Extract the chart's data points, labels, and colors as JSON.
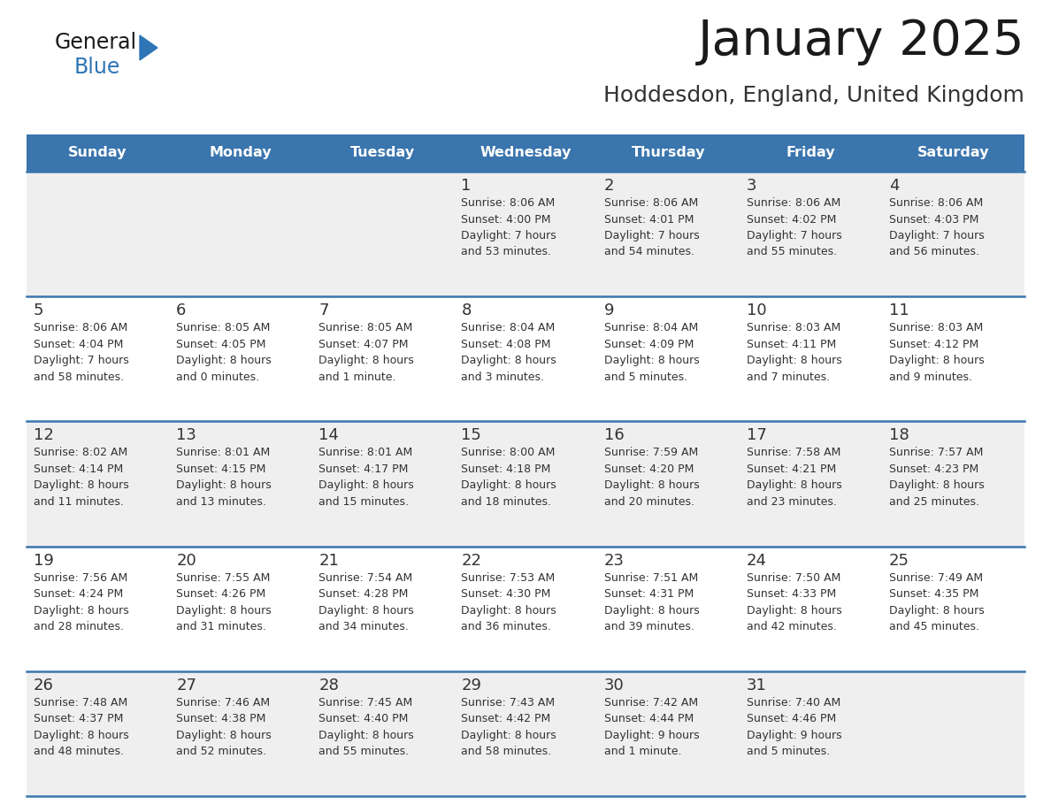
{
  "title": "January 2025",
  "subtitle": "Hoddesdon, England, United Kingdom",
  "days_of_week": [
    "Sunday",
    "Monday",
    "Tuesday",
    "Wednesday",
    "Thursday",
    "Friday",
    "Saturday"
  ],
  "header_bg": "#3a75ad",
  "header_text": "#ffffff",
  "row_bg_odd": "#efefef",
  "row_bg_even": "#ffffff",
  "separator_color": "#3a75ad",
  "day_number_color": "#333333",
  "cell_text_color": "#333333",
  "title_color": "#1a1a1a",
  "subtitle_color": "#333333",
  "general_color": "#1a1a1a",
  "blue_color": "#2e75b6",
  "logo_triangle_color": "#2e75b6",
  "calendar_data": [
    {
      "day": 1,
      "col": 3,
      "row": 0,
      "sunrise": "8:06 AM",
      "sunset": "4:00 PM",
      "daylight": "7 hours and 53 minutes."
    },
    {
      "day": 2,
      "col": 4,
      "row": 0,
      "sunrise": "8:06 AM",
      "sunset": "4:01 PM",
      "daylight": "7 hours and 54 minutes."
    },
    {
      "day": 3,
      "col": 5,
      "row": 0,
      "sunrise": "8:06 AM",
      "sunset": "4:02 PM",
      "daylight": "7 hours and 55 minutes."
    },
    {
      "day": 4,
      "col": 6,
      "row": 0,
      "sunrise": "8:06 AM",
      "sunset": "4:03 PM",
      "daylight": "7 hours and 56 minutes."
    },
    {
      "day": 5,
      "col": 0,
      "row": 1,
      "sunrise": "8:06 AM",
      "sunset": "4:04 PM",
      "daylight": "7 hours and 58 minutes."
    },
    {
      "day": 6,
      "col": 1,
      "row": 1,
      "sunrise": "8:05 AM",
      "sunset": "4:05 PM",
      "daylight": "8 hours and 0 minutes."
    },
    {
      "day": 7,
      "col": 2,
      "row": 1,
      "sunrise": "8:05 AM",
      "sunset": "4:07 PM",
      "daylight": "8 hours and 1 minute."
    },
    {
      "day": 8,
      "col": 3,
      "row": 1,
      "sunrise": "8:04 AM",
      "sunset": "4:08 PM",
      "daylight": "8 hours and 3 minutes."
    },
    {
      "day": 9,
      "col": 4,
      "row": 1,
      "sunrise": "8:04 AM",
      "sunset": "4:09 PM",
      "daylight": "8 hours and 5 minutes."
    },
    {
      "day": 10,
      "col": 5,
      "row": 1,
      "sunrise": "8:03 AM",
      "sunset": "4:11 PM",
      "daylight": "8 hours and 7 minutes."
    },
    {
      "day": 11,
      "col": 6,
      "row": 1,
      "sunrise": "8:03 AM",
      "sunset": "4:12 PM",
      "daylight": "8 hours and 9 minutes."
    },
    {
      "day": 12,
      "col": 0,
      "row": 2,
      "sunrise": "8:02 AM",
      "sunset": "4:14 PM",
      "daylight": "8 hours and 11 minutes."
    },
    {
      "day": 13,
      "col": 1,
      "row": 2,
      "sunrise": "8:01 AM",
      "sunset": "4:15 PM",
      "daylight": "8 hours and 13 minutes."
    },
    {
      "day": 14,
      "col": 2,
      "row": 2,
      "sunrise": "8:01 AM",
      "sunset": "4:17 PM",
      "daylight": "8 hours and 15 minutes."
    },
    {
      "day": 15,
      "col": 3,
      "row": 2,
      "sunrise": "8:00 AM",
      "sunset": "4:18 PM",
      "daylight": "8 hours and 18 minutes."
    },
    {
      "day": 16,
      "col": 4,
      "row": 2,
      "sunrise": "7:59 AM",
      "sunset": "4:20 PM",
      "daylight": "8 hours and 20 minutes."
    },
    {
      "day": 17,
      "col": 5,
      "row": 2,
      "sunrise": "7:58 AM",
      "sunset": "4:21 PM",
      "daylight": "8 hours and 23 minutes."
    },
    {
      "day": 18,
      "col": 6,
      "row": 2,
      "sunrise": "7:57 AM",
      "sunset": "4:23 PM",
      "daylight": "8 hours and 25 minutes."
    },
    {
      "day": 19,
      "col": 0,
      "row": 3,
      "sunrise": "7:56 AM",
      "sunset": "4:24 PM",
      "daylight": "8 hours and 28 minutes."
    },
    {
      "day": 20,
      "col": 1,
      "row": 3,
      "sunrise": "7:55 AM",
      "sunset": "4:26 PM",
      "daylight": "8 hours and 31 minutes."
    },
    {
      "day": 21,
      "col": 2,
      "row": 3,
      "sunrise": "7:54 AM",
      "sunset": "4:28 PM",
      "daylight": "8 hours and 34 minutes."
    },
    {
      "day": 22,
      "col": 3,
      "row": 3,
      "sunrise": "7:53 AM",
      "sunset": "4:30 PM",
      "daylight": "8 hours and 36 minutes."
    },
    {
      "day": 23,
      "col": 4,
      "row": 3,
      "sunrise": "7:51 AM",
      "sunset": "4:31 PM",
      "daylight": "8 hours and 39 minutes."
    },
    {
      "day": 24,
      "col": 5,
      "row": 3,
      "sunrise": "7:50 AM",
      "sunset": "4:33 PM",
      "daylight": "8 hours and 42 minutes."
    },
    {
      "day": 25,
      "col": 6,
      "row": 3,
      "sunrise": "7:49 AM",
      "sunset": "4:35 PM",
      "daylight": "8 hours and 45 minutes."
    },
    {
      "day": 26,
      "col": 0,
      "row": 4,
      "sunrise": "7:48 AM",
      "sunset": "4:37 PM",
      "daylight": "8 hours and 48 minutes."
    },
    {
      "day": 27,
      "col": 1,
      "row": 4,
      "sunrise": "7:46 AM",
      "sunset": "4:38 PM",
      "daylight": "8 hours and 52 minutes."
    },
    {
      "day": 28,
      "col": 2,
      "row": 4,
      "sunrise": "7:45 AM",
      "sunset": "4:40 PM",
      "daylight": "8 hours and 55 minutes."
    },
    {
      "day": 29,
      "col": 3,
      "row": 4,
      "sunrise": "7:43 AM",
      "sunset": "4:42 PM",
      "daylight": "8 hours and 58 minutes."
    },
    {
      "day": 30,
      "col": 4,
      "row": 4,
      "sunrise": "7:42 AM",
      "sunset": "4:44 PM",
      "daylight": "9 hours and 1 minute."
    },
    {
      "day": 31,
      "col": 5,
      "row": 4,
      "sunrise": "7:40 AM",
      "sunset": "4:46 PM",
      "daylight": "9 hours and 5 minutes."
    }
  ]
}
